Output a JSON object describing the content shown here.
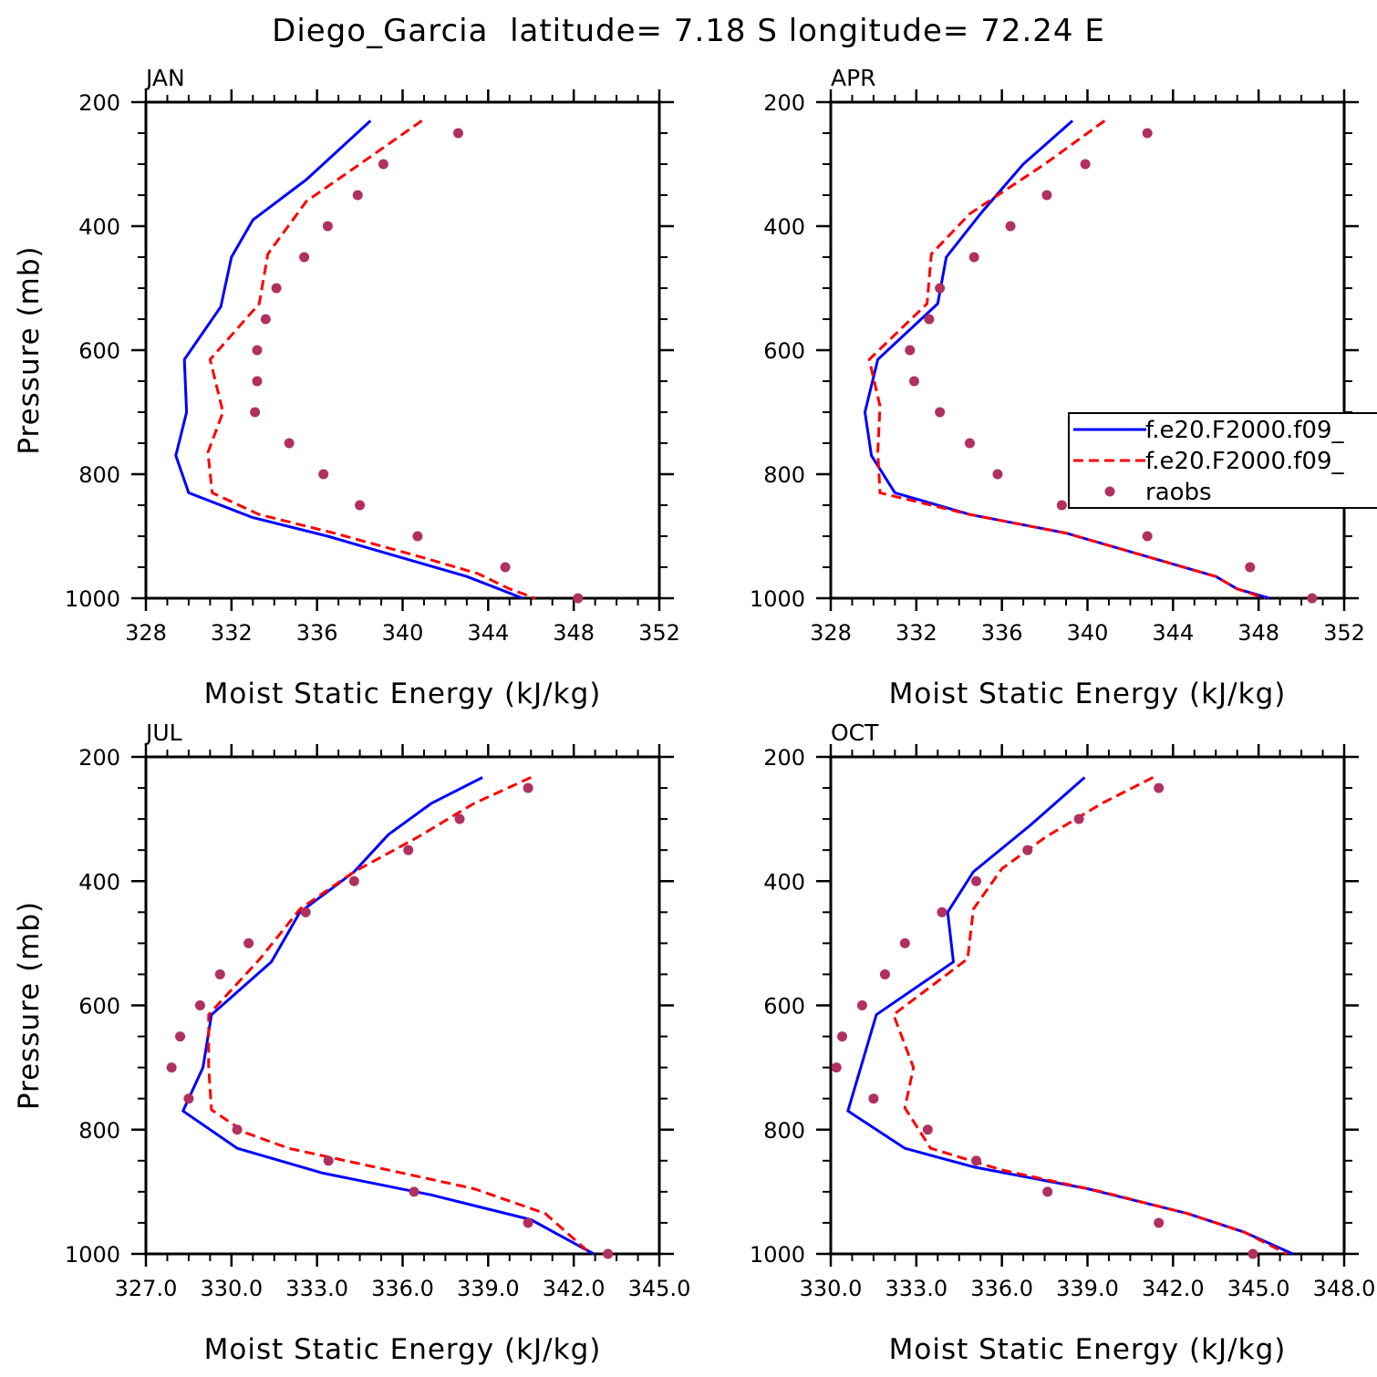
{
  "figure_title": "Diego_Garcia  latitude= 7.18 S longitude= 72.24 E",
  "legend": {
    "entries": [
      {
        "label": "f.e20.F2000.f09_",
        "style": "solid",
        "color": "#0000ff"
      },
      {
        "label": "f.e20.F2000.f09_",
        "style": "dashed",
        "color": "#ff0000"
      },
      {
        "label": "raobs",
        "style": "dots",
        "color": "#b03060"
      }
    ]
  },
  "chart_data": [
    {
      "type": "line",
      "panel_label": "JAN",
      "xlabel": "Moist Static Energy (kJ/kg)",
      "ylabel": "Pressure (mb)",
      "xlim": [
        328,
        352
      ],
      "xticks": [
        "328",
        "332",
        "336",
        "340",
        "344",
        "348",
        "352"
      ],
      "ylim": [
        200,
        1000
      ],
      "yticks": [
        "200",
        "400",
        "600",
        "800",
        "1000"
      ],
      "y_inverted": true,
      "series": [
        {
          "style": "solid",
          "color": "#0000ff",
          "x": [
            338.5,
            335.5,
            333.0,
            332.0,
            331.5,
            329.8,
            329.9,
            329.4,
            330.0,
            333.0,
            336.5,
            340.0,
            343.0,
            344.5,
            345.6
          ],
          "y": [
            230,
            325,
            390,
            450,
            530,
            615,
            700,
            770,
            830,
            870,
            900,
            935,
            965,
            985,
            1000
          ]
        },
        {
          "style": "dashed",
          "color": "#ff0000",
          "x": [
            340.9,
            338.0,
            335.5,
            333.7,
            333.3,
            331.0,
            331.6,
            330.9,
            331.1,
            333.3,
            336.8,
            340.5,
            343.5,
            345.0,
            346.2
          ],
          "y": [
            230,
            300,
            360,
            445,
            525,
            615,
            700,
            765,
            830,
            865,
            895,
            930,
            960,
            985,
            1000
          ]
        }
      ],
      "points": {
        "color": "#b03060",
        "x": [
          342.6,
          339.1,
          337.9,
          336.5,
          335.4,
          334.1,
          333.6,
          333.2,
          333.2,
          333.1,
          334.7,
          336.3,
          338.0,
          340.7,
          344.8,
          348.2
        ],
        "y": [
          250,
          300,
          350,
          400,
          450,
          500,
          550,
          600,
          650,
          700,
          750,
          800,
          850,
          900,
          950,
          1000
        ]
      }
    },
    {
      "type": "line",
      "panel_label": "APR",
      "xlabel": "Moist Static Energy (kJ/kg)",
      "ylabel": "",
      "xlim": [
        328,
        352
      ],
      "xticks": [
        "328",
        "332",
        "336",
        "340",
        "344",
        "348",
        "352"
      ],
      "ylim": [
        200,
        1000
      ],
      "yticks": [
        "200",
        "400",
        "600",
        "800",
        "1000"
      ],
      "y_inverted": true,
      "series": [
        {
          "style": "solid",
          "color": "#0000ff",
          "x": [
            339.3,
            337.0,
            335.0,
            333.4,
            333.0,
            330.2,
            329.6,
            329.9,
            331.0,
            334.5,
            339.0,
            343.0,
            346.0,
            347.0,
            348.5
          ],
          "y": [
            230,
            300,
            380,
            450,
            525,
            615,
            700,
            770,
            830,
            865,
            895,
            935,
            965,
            985,
            1000
          ]
        },
        {
          "style": "dashed",
          "color": "#ff0000",
          "x": [
            340.8,
            338.0,
            334.5,
            332.7,
            332.5,
            329.8,
            330.3,
            330.2,
            330.3,
            334.5,
            339.0,
            343.0,
            346.0,
            347.0,
            348.3
          ],
          "y": [
            230,
            300,
            380,
            445,
            525,
            615,
            690,
            765,
            830,
            865,
            895,
            935,
            965,
            985,
            1000
          ]
        }
      ],
      "points": {
        "color": "#b03060",
        "x": [
          342.8,
          339.9,
          338.1,
          336.4,
          334.7,
          333.1,
          332.6,
          331.7,
          331.9,
          333.1,
          334.5,
          335.8,
          338.8,
          342.8,
          347.6,
          350.5
        ],
        "y": [
          250,
          300,
          350,
          400,
          450,
          500,
          550,
          600,
          650,
          700,
          750,
          800,
          850,
          900,
          950,
          1000
        ]
      }
    },
    {
      "type": "line",
      "panel_label": "JUL",
      "xlabel": "Moist Static Energy (kJ/kg)",
      "ylabel": "Pressure (mb)",
      "xlim": [
        327,
        345
      ],
      "xticks": [
        "327.0",
        "330.0",
        "333.0",
        "336.0",
        "339.0",
        "342.0",
        "345.0"
      ],
      "ylim": [
        200,
        1000
      ],
      "yticks": [
        "200",
        "400",
        "600",
        "800",
        "1000"
      ],
      "y_inverted": true,
      "series": [
        {
          "style": "solid",
          "color": "#0000ff",
          "x": [
            338.8,
            337.0,
            335.5,
            334.3,
            332.4,
            331.4,
            329.3,
            329.0,
            328.3,
            330.2,
            333.2,
            337.0,
            340.5,
            341.5,
            342.7
          ],
          "y": [
            233,
            275,
            325,
            385,
            450,
            530,
            615,
            700,
            770,
            830,
            870,
            905,
            945,
            970,
            1000
          ]
        },
        {
          "style": "dashed",
          "color": "#ff0000",
          "x": [
            340.5,
            338.5,
            336.5,
            334.3,
            332.4,
            331.0,
            329.2,
            329.2,
            329.3,
            330.5,
            332.0,
            335.0,
            338.5,
            341.0,
            342.6
          ],
          "y": [
            233,
            275,
            330,
            385,
            445,
            525,
            615,
            700,
            768,
            805,
            830,
            860,
            895,
            935,
            1000
          ]
        }
      ],
      "points": {
        "color": "#b03060",
        "x": [
          340.4,
          338.0,
          336.2,
          334.3,
          332.6,
          330.6,
          329.6,
          328.9,
          328.2,
          327.9,
          328.5,
          330.2,
          333.4,
          336.4,
          340.4,
          343.2
        ],
        "y": [
          250,
          300,
          350,
          400,
          450,
          500,
          550,
          600,
          650,
          700,
          750,
          800,
          850,
          900,
          950,
          1000
        ]
      }
    },
    {
      "type": "line",
      "panel_label": "OCT",
      "xlabel": "Moist Static Energy (kJ/kg)",
      "ylabel": "",
      "xlim": [
        330,
        348
      ],
      "xticks": [
        "330.0",
        "333.0",
        "336.0",
        "339.0",
        "342.0",
        "345.0",
        "348.0"
      ],
      "ylim": [
        200,
        1000
      ],
      "yticks": [
        "200",
        "400",
        "600",
        "800",
        "1000"
      ],
      "y_inverted": true,
      "series": [
        {
          "style": "solid",
          "color": "#0000ff",
          "x": [
            338.9,
            337.0,
            335.0,
            334.1,
            334.3,
            331.6,
            330.6,
            332.6,
            335.0,
            339.0,
            342.5,
            344.5,
            346.2
          ],
          "y": [
            233,
            310,
            385,
            450,
            530,
            615,
            770,
            830,
            860,
            895,
            935,
            965,
            1000
          ]
        },
        {
          "style": "dashed",
          "color": "#ff0000",
          "x": [
            341.3,
            339.5,
            337.5,
            336.0,
            335.0,
            334.8,
            332.2,
            332.9,
            332.6,
            333.5,
            336.0,
            339.5,
            342.5,
            344.5,
            346.0
          ],
          "y": [
            233,
            275,
            330,
            380,
            445,
            525,
            615,
            700,
            765,
            830,
            865,
            900,
            935,
            965,
            1000
          ]
        }
      ],
      "points": {
        "color": "#b03060",
        "x": [
          341.5,
          338.7,
          336.9,
          335.1,
          333.9,
          332.6,
          331.9,
          331.1,
          330.4,
          330.2,
          331.5,
          333.4,
          335.1,
          337.6,
          341.5,
          344.8
        ],
        "y": [
          250,
          300,
          350,
          400,
          450,
          500,
          550,
          600,
          650,
          700,
          750,
          800,
          850,
          900,
          950,
          1000
        ]
      }
    }
  ]
}
